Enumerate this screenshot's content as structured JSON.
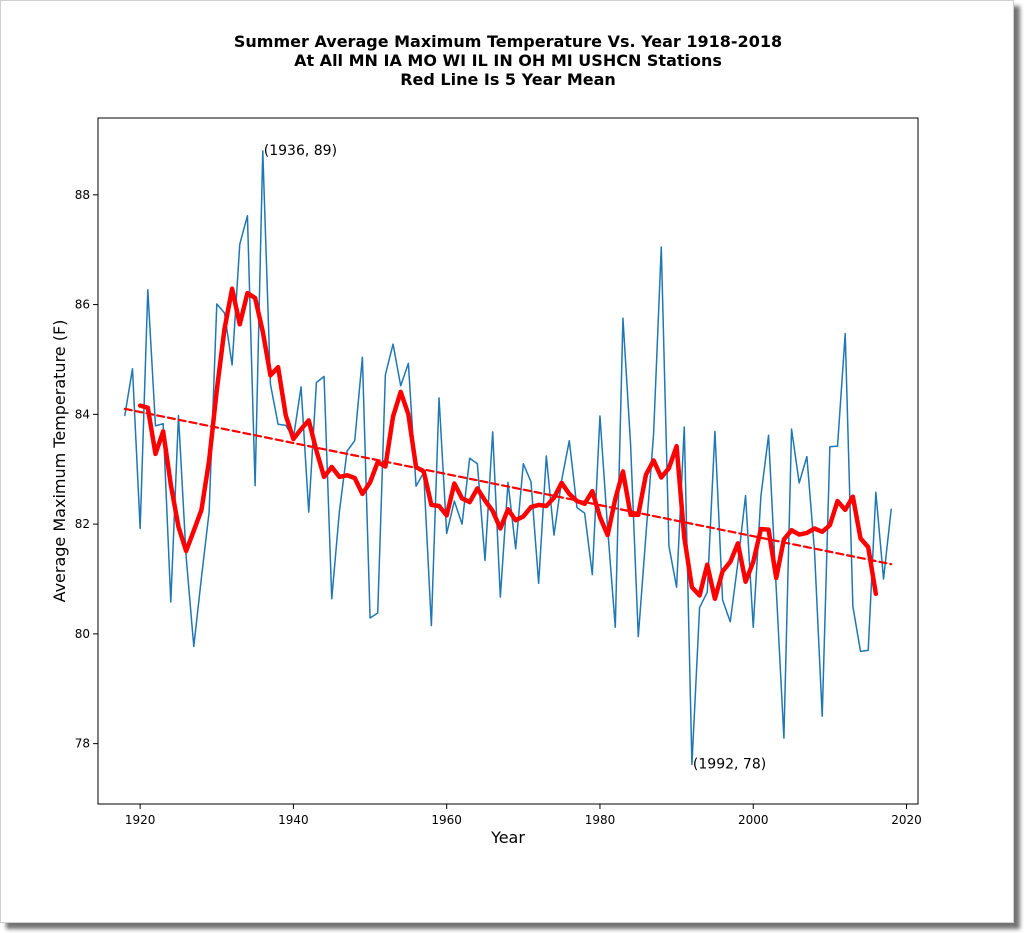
{
  "chart_data": {
    "type": "line",
    "title_lines": [
      "Summer Average Maximum Temperature Vs. Year 1918-2018",
      "At All MN IA MO WI IL IN OH MI USHCN Stations",
      "Red Line Is 5 Year Mean"
    ],
    "xlabel": "Year",
    "ylabel": "Average Maximum Temperature (F)",
    "xlim": [
      1914.5,
      2021.5
    ],
    "ylim": [
      76.9,
      89.4
    ],
    "xticks": [
      1920,
      1940,
      1960,
      1980,
      2000,
      2020
    ],
    "yticks": [
      78,
      80,
      82,
      84,
      86,
      88
    ],
    "grid": false,
    "series": [
      {
        "role": "annual",
        "color": "#1f77b4",
        "x": [
          1918,
          1919,
          1920,
          1921,
          1922,
          1923,
          1924,
          1925,
          1926,
          1927,
          1928,
          1929,
          1930,
          1931,
          1932,
          1933,
          1934,
          1935,
          1936,
          1937,
          1938,
          1939,
          1940,
          1941,
          1942,
          1943,
          1944,
          1945,
          1946,
          1947,
          1948,
          1949,
          1950,
          1951,
          1952,
          1953,
          1954,
          1955,
          1956,
          1957,
          1958,
          1959,
          1960,
          1961,
          1962,
          1963,
          1964,
          1965,
          1966,
          1967,
          1968,
          1969,
          1970,
          1971,
          1972,
          1973,
          1974,
          1975,
          1976,
          1977,
          1978,
          1979,
          1980,
          1981,
          1982,
          1983,
          1984,
          1985,
          1986,
          1987,
          1988,
          1989,
          1990,
          1991,
          1992,
          1993,
          1994,
          1995,
          1996,
          1997,
          1998,
          1999,
          2000,
          2001,
          2002,
          2003,
          2004,
          2005,
          2006,
          2007,
          2008,
          2009,
          2010,
          2011,
          2012,
          2013,
          2014,
          2015,
          2016,
          2017,
          2018
        ],
        "y": [
          83.98,
          84.83,
          81.92,
          86.27,
          83.79,
          83.83,
          80.58,
          83.98,
          81.41,
          79.77,
          81.03,
          82.22,
          86.01,
          85.85,
          84.9,
          87.1,
          87.62,
          82.7,
          88.8,
          84.55,
          83.82,
          83.8,
          83.57,
          84.5,
          82.22,
          84.58,
          84.69,
          80.64,
          82.23,
          83.33,
          83.52,
          85.04,
          80.29,
          80.38,
          84.72,
          85.28,
          84.52,
          84.93,
          82.69,
          82.94,
          80.15,
          84.3,
          81.83,
          82.42,
          82.0,
          83.2,
          83.1,
          81.34,
          83.68,
          80.67,
          82.76,
          81.55,
          83.1,
          82.77,
          80.92,
          83.24,
          81.8,
          82.8,
          83.52,
          82.3,
          82.2,
          81.08,
          83.97,
          81.92,
          80.12,
          85.75,
          83.44,
          79.95,
          81.8,
          83.65,
          87.05,
          81.6,
          80.85,
          83.77,
          77.62,
          80.48,
          80.76,
          83.69,
          80.62,
          80.22,
          81.3,
          82.52,
          80.12,
          82.51,
          83.62,
          80.83,
          78.1,
          83.73,
          82.75,
          83.23,
          81.5,
          78.5,
          83.41,
          83.42,
          85.47,
          80.5,
          79.68,
          79.7,
          82.58,
          81.0,
          82.27
        ]
      },
      {
        "role": "five-year-mean",
        "color": "#ff0000",
        "x": [
          1920,
          1921,
          1922,
          1923,
          1924,
          1925,
          1926,
          1927,
          1928,
          1929,
          1930,
          1931,
          1932,
          1933,
          1934,
          1935,
          1936,
          1937,
          1938,
          1939,
          1940,
          1941,
          1942,
          1943,
          1944,
          1945,
          1946,
          1947,
          1948,
          1949,
          1950,
          1951,
          1952,
          1953,
          1954,
          1955,
          1956,
          1957,
          1958,
          1959,
          1960,
          1961,
          1962,
          1963,
          1964,
          1965,
          1966,
          1967,
          1968,
          1969,
          1970,
          1971,
          1972,
          1973,
          1974,
          1975,
          1976,
          1977,
          1978,
          1979,
          1980,
          1981,
          1982,
          1983,
          1984,
          1985,
          1986,
          1987,
          1988,
          1989,
          1990,
          1991,
          1992,
          1993,
          1994,
          1995,
          1996,
          1997,
          1998,
          1999,
          2000,
          2001,
          2002,
          2003,
          2004,
          2005,
          2006,
          2007,
          2008,
          2009,
          2010,
          2011,
          2012,
          2013,
          2014,
          2015,
          2016
        ],
        "y": [
          84.16,
          84.12,
          83.28,
          83.69,
          82.72,
          81.95,
          81.51,
          81.88,
          82.26,
          83.16,
          84.44,
          85.55,
          86.29,
          85.64,
          86.21,
          86.12,
          85.51,
          84.71,
          84.86,
          83.98,
          83.55,
          83.73,
          83.89,
          83.34,
          82.86,
          83.04,
          82.86,
          82.89,
          82.84,
          82.55,
          82.76,
          83.13,
          83.05,
          83.96,
          84.41,
          84.0,
          83.04,
          82.96,
          82.35,
          82.33,
          82.16,
          82.74,
          82.47,
          82.4,
          82.65,
          82.43,
          82.24,
          81.92,
          82.27,
          82.07,
          82.14,
          82.31,
          82.35,
          82.33,
          82.48,
          82.75,
          82.55,
          82.42,
          82.37,
          82.6,
          82.13,
          81.8,
          82.46,
          82.96,
          82.17,
          82.17,
          82.9,
          83.16,
          82.85,
          83.02,
          83.42,
          81.76,
          80.85,
          80.7,
          81.26,
          80.64,
          81.14,
          81.31,
          81.65,
          80.95,
          81.31,
          81.91,
          81.9,
          81.02,
          81.72,
          81.89,
          81.81,
          81.84,
          81.92,
          81.86,
          81.98,
          82.42,
          82.26,
          82.5,
          81.74,
          81.58,
          80.73
        ]
      },
      {
        "role": "trend",
        "color": "#ff0000",
        "style": "dashed",
        "x": [
          1918,
          2018
        ],
        "y": [
          84.1,
          81.27
        ]
      }
    ],
    "annotations": [
      {
        "text": "(1936, 89)",
        "x": 1936,
        "y": 88.8
      },
      {
        "text": "(1992, 78)",
        "x": 1992,
        "y": 77.62
      }
    ]
  }
}
